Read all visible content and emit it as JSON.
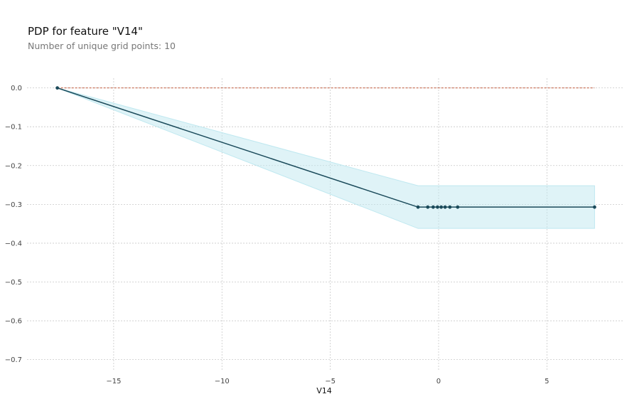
{
  "chart_data": {
    "type": "line",
    "title": "PDP for feature \"V14\"",
    "subtitle": "Number of unique grid points: 10",
    "xlabel": "V14",
    "ylabel": "",
    "xlim": [
      -19.0,
      8.5
    ],
    "ylim": [
      -0.73,
      0.025
    ],
    "xticks": [
      -15,
      -10,
      -5,
      0,
      5
    ],
    "xtick_labels": [
      "−15",
      "−10",
      "−5",
      "0",
      "5"
    ],
    "yticks": [
      0.0,
      -0.1,
      -0.2,
      -0.3,
      -0.4,
      -0.5,
      -0.6,
      -0.7
    ],
    "ytick_labels": [
      "0.0",
      "−0.1",
      "−0.2",
      "−0.3",
      "−0.4",
      "−0.5",
      "−0.6",
      "−0.7"
    ],
    "grid": true,
    "series": [
      {
        "values_x": [
          -17.6,
          -0.95,
          -0.5,
          -0.25,
          -0.05,
          0.12,
          0.3,
          0.52,
          0.88,
          7.2
        ],
        "values_y": [
          0.0,
          -0.307,
          -0.307,
          -0.307,
          -0.307,
          -0.307,
          -0.307,
          -0.307,
          -0.307,
          -0.307
        ],
        "color": "#1a4a5a"
      }
    ],
    "band": {
      "upper": [
        0.0,
        -0.252,
        -0.252,
        -0.252,
        -0.252,
        -0.252,
        -0.252,
        -0.252,
        -0.252,
        -0.252
      ],
      "lower": [
        0.0,
        -0.362,
        -0.362,
        -0.362,
        -0.362,
        -0.362,
        -0.362,
        -0.362,
        -0.362,
        -0.362
      ],
      "color": "#bfe8f0"
    },
    "reference_line": {
      "y": 0.0,
      "color": "#c0583a"
    }
  }
}
